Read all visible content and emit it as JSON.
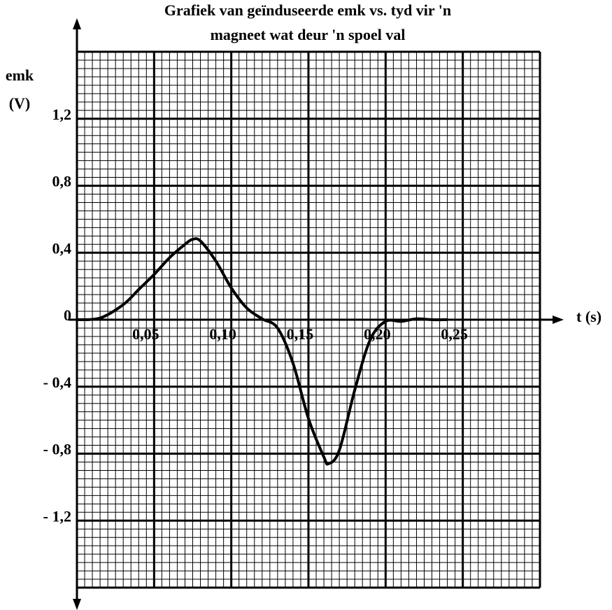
{
  "chart_data": {
    "type": "line",
    "title": [
      "Grafiek van geïnduseerde emk vs. tyd vir 'n",
      "magneet wat deur 'n spoel val"
    ],
    "y_label": [
      "emk",
      "(V)"
    ],
    "x_label": "t (s)",
    "x": [
      0,
      0.015,
      0.03,
      0.04,
      0.05,
      0.06,
      0.07,
      0.075,
      0.08,
      0.09,
      0.1,
      0.11,
      0.12,
      0.13,
      0.14,
      0.15,
      0.16,
      0.163,
      0.17,
      0.18,
      0.19,
      0.2,
      0.21,
      0.22,
      0.23,
      0.24
    ],
    "series": [
      {
        "color": "#000000",
        "values": [
          0,
          0.01,
          0.09,
          0.18,
          0.27,
          0.37,
          0.45,
          0.48,
          0.47,
          0.35,
          0.19,
          0.07,
          0.005,
          -0.05,
          -0.26,
          -0.59,
          -0.82,
          -0.86,
          -0.78,
          -0.42,
          -0.12,
          -0.01,
          -0.01,
          0.005,
          0,
          0
        ]
      }
    ],
    "xlim": [
      0,
      0.3
    ],
    "ylim": [
      -1.6,
      1.6
    ],
    "xticks": [
      {
        "value": 0.05,
        "label": "0,05"
      },
      {
        "value": 0.1,
        "label": "0,10"
      },
      {
        "value": 0.15,
        "label": "0,15"
      },
      {
        "value": 0.2,
        "label": "0,20"
      },
      {
        "value": 0.25,
        "label": "0,25"
      }
    ],
    "yticks": [
      {
        "value": 1.2,
        "label": "1,2"
      },
      {
        "value": 0.8,
        "label": "0,8"
      },
      {
        "value": 0.4,
        "label": "0,4"
      },
      0,
      {
        "value": -0.4,
        "label": "- 0,4"
      },
      {
        "value": -0.8,
        "label": "- 0,8"
      },
      {
        "value": -1.2,
        "label": "- 1,2"
      }
    ],
    "grid": true
  }
}
